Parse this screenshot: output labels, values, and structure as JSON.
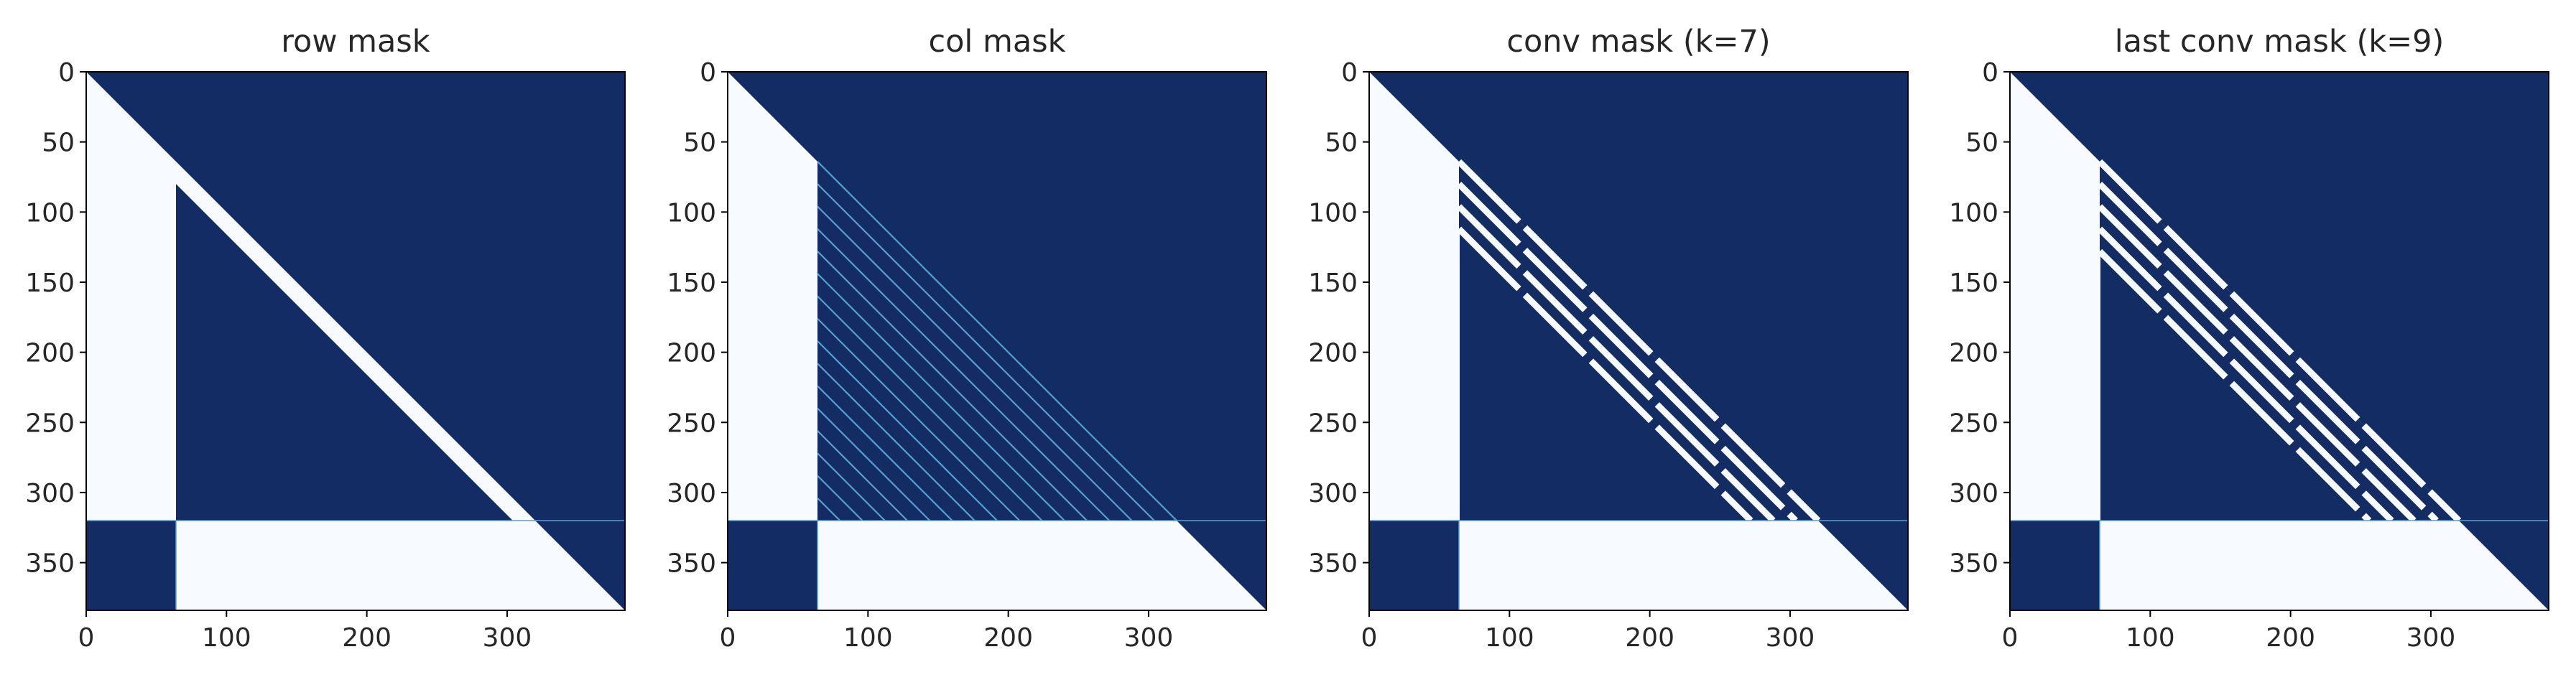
{
  "colors": {
    "mask_on": "#f7fbff",
    "mask_off": "#142c64",
    "stripe": "#5a9fd3",
    "axes": "#000000",
    "text": "#262626"
  },
  "chart_data": [
    {
      "type": "heatmap",
      "title": "row mask",
      "xlabel": "",
      "ylabel": "",
      "xlim": [
        0,
        384
      ],
      "ylim": [
        384,
        0
      ],
      "x_ticks": [
        "0",
        "100",
        "200",
        "300"
      ],
      "y_ticks": [
        "0",
        "50",
        "100",
        "150",
        "200",
        "250",
        "300",
        "350"
      ],
      "colormap": "Blues",
      "grid": false,
      "legend": "none",
      "segments": {
        "prefix_end": 64,
        "suffix_start": 320,
        "size": 384
      },
      "pattern": {
        "kind": "row",
        "gap_rows_from": 80,
        "gap_width": 16
      }
    },
    {
      "type": "heatmap",
      "title": "col mask",
      "xlabel": "",
      "ylabel": "",
      "xlim": [
        0,
        384
      ],
      "ylim": [
        384,
        0
      ],
      "x_ticks": [
        "0",
        "100",
        "200",
        "300"
      ],
      "y_ticks": [
        "0",
        "50",
        "100",
        "150",
        "200",
        "250",
        "300",
        "350"
      ],
      "colormap": "Blues",
      "grid": false,
      "legend": "none",
      "segments": {
        "prefix_end": 64,
        "suffix_start": 320,
        "size": 384
      },
      "pattern": {
        "kind": "col",
        "stripe_period": 16
      }
    },
    {
      "type": "heatmap",
      "title": "conv mask (k=7)",
      "xlabel": "",
      "ylabel": "",
      "xlim": [
        0,
        384
      ],
      "ylim": [
        384,
        0
      ],
      "x_ticks": [
        "0",
        "100",
        "200",
        "300"
      ],
      "y_ticks": [
        "0",
        "50",
        "100",
        "150",
        "200",
        "250",
        "300",
        "350"
      ],
      "colormap": "Blues",
      "grid": false,
      "legend": "none",
      "segments": {
        "prefix_end": 64,
        "suffix_start": 320,
        "size": 384
      },
      "pattern": {
        "kind": "conv",
        "k": 7,
        "bands": 4,
        "band_step": 16
      }
    },
    {
      "type": "heatmap",
      "title": "last conv mask (k=9)",
      "xlabel": "",
      "ylabel": "",
      "xlim": [
        0,
        384
      ],
      "ylim": [
        384,
        0
      ],
      "x_ticks": [
        "0",
        "100",
        "200",
        "300"
      ],
      "y_ticks": [
        "0",
        "50",
        "100",
        "150",
        "200",
        "250",
        "300",
        "350"
      ],
      "colormap": "Blues",
      "grid": false,
      "legend": "none",
      "segments": {
        "prefix_end": 64,
        "suffix_start": 320,
        "size": 384
      },
      "pattern": {
        "kind": "conv",
        "k": 9,
        "bands": 5,
        "band_step": 16
      }
    }
  ]
}
